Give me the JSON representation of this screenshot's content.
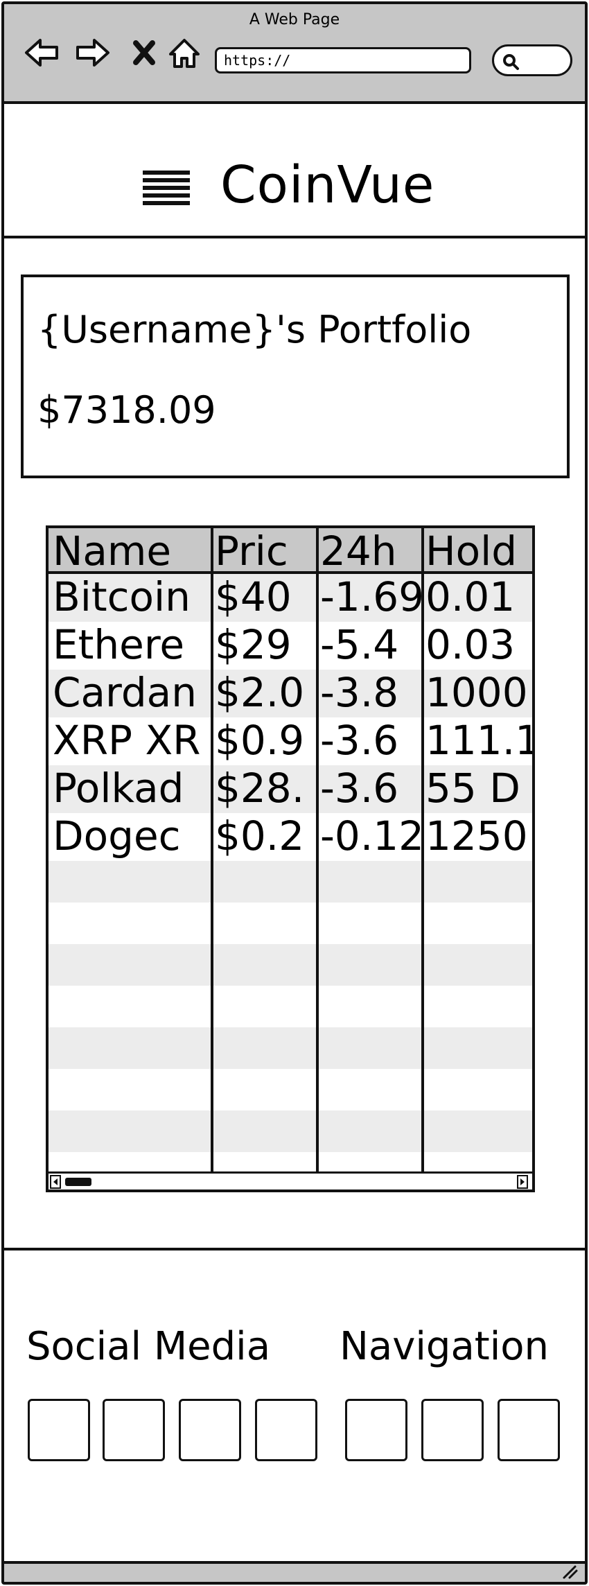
{
  "browser": {
    "window_title": "A Web Page",
    "url": "https://"
  },
  "header": {
    "brand": "CoinVue",
    "menu_icon": "hamburger-menu-icon"
  },
  "portfolio": {
    "title": "{Username}'s Portfolio",
    "value": "$7318.09"
  },
  "table": {
    "columns": [
      "Name",
      "Pric",
      "24h",
      "Hold"
    ],
    "rows": [
      [
        "Bitcoin",
        "$40",
        "-1.69",
        "0.01"
      ],
      [
        "Ethere",
        "$29",
        "-5.4",
        "0.03"
      ],
      [
        "Cardan",
        "$2.0",
        "-3.8",
        "1000"
      ],
      [
        "XRP XR",
        "$0.9",
        "-3.6",
        "111.1"
      ],
      [
        "Polkad",
        "$28.",
        "-3.6",
        "55 D"
      ],
      [
        "Dogec",
        "$0.2",
        "-0.12",
        "1250"
      ]
    ]
  },
  "footer": {
    "social_heading": "Social Media",
    "nav_heading": "Navigation"
  }
}
